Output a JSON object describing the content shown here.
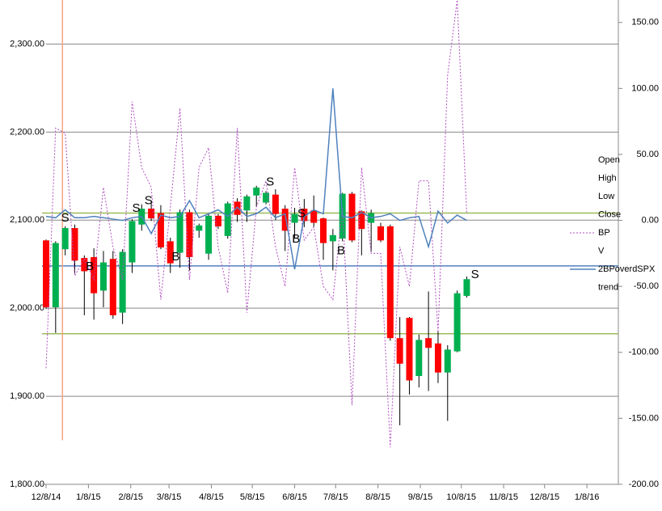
{
  "chart_data": {
    "type": "candlestick",
    "x": [
      0,
      7,
      14,
      21,
      28,
      35,
      42,
      49,
      56,
      63,
      70,
      77,
      84,
      91,
      98,
      105,
      112,
      119,
      126,
      133,
      140,
      147,
      154,
      161,
      168,
      175,
      182,
      189,
      196,
      203,
      210,
      217,
      224,
      231,
      238,
      245,
      252,
      259,
      266,
      273,
      280,
      287,
      294,
      301,
      308
    ],
    "xlim": [
      0,
      419
    ],
    "xticks": [
      {
        "value": 0,
        "label": "12/8/14"
      },
      {
        "value": 31,
        "label": "1/8/15"
      },
      {
        "value": 62,
        "label": "2/8/15"
      },
      {
        "value": 90,
        "label": "3/8/15"
      },
      {
        "value": 121,
        "label": "4/8/15"
      },
      {
        "value": 151,
        "label": "5/8/15"
      },
      {
        "value": 182,
        "label": "6/8/15"
      },
      {
        "value": 212,
        "label": "7/8/15"
      },
      {
        "value": 243,
        "label": "8/8/15"
      },
      {
        "value": 274,
        "label": "9/8/15"
      },
      {
        "value": 304,
        "label": "10/8/15"
      },
      {
        "value": 335,
        "label": "11/8/15"
      },
      {
        "value": 365,
        "label": "12/8/15"
      },
      {
        "value": 396,
        "label": "1/8/16"
      }
    ],
    "ylim": [
      1800,
      2350
    ],
    "yticks": [
      {
        "value": 1800,
        "label": "1,800.00"
      },
      {
        "value": 1900,
        "label": "1,900.00"
      },
      {
        "value": 2000,
        "label": "2,000.00"
      },
      {
        "value": 2100,
        "label": "2,100.00"
      },
      {
        "value": 2200,
        "label": "2,200.00"
      },
      {
        "value": 2300,
        "label": "2,300.00"
      }
    ],
    "y2lim": [
      -200,
      167
    ],
    "y2ticks": [
      {
        "value": -200,
        "label": "-200.00"
      },
      {
        "value": -150,
        "label": "-150.00"
      },
      {
        "value": -100,
        "label": "-100.00"
      },
      {
        "value": -50,
        "label": "-50.00"
      },
      {
        "value": 0,
        "label": "0.00"
      },
      {
        "value": 50,
        "label": "50.00"
      },
      {
        "value": 100,
        "label": "100.00"
      },
      {
        "value": 150,
        "label": "150.00"
      }
    ],
    "grid": true,
    "up_color": "#00b050",
    "down_color": "#ff0000",
    "series": [
      {
        "name": "Open",
        "values": [
          2077,
          2001,
          2067,
          2091,
          2057,
          2058,
          2020,
          2056,
          1995,
          2052,
          2095,
          2113,
          2108,
          2076,
          2063,
          2109,
          2088,
          2062,
          2105,
          2082,
          2121,
          2111,
          2128,
          2120,
          2129,
          2113,
          2097,
          2113,
          2111,
          2102,
          2076,
          2079,
          2130,
          2110,
          2097,
          2093,
          2093,
          1966,
          1989,
          1923,
          1966,
          1960,
          1927,
          1951,
          2014
        ]
      },
      {
        "name": "High",
        "values": [
          2078,
          2076,
          2093,
          2095,
          2060,
          2068,
          2065,
          2065,
          2067,
          2101,
          2118,
          2120,
          2117,
          2080,
          2112,
          2112,
          2096,
          2107,
          2107,
          2121,
          2125,
          2129,
          2139,
          2133,
          2135,
          2117,
          2114,
          2124,
          2128,
          2103,
          2090,
          2131,
          2132,
          2111,
          2112,
          2097,
          2095,
          1990,
          1990,
          1970,
          2019,
          1975,
          1958,
          2020,
          2036
        ]
      },
      {
        "name": "Low",
        "values": [
          1999,
          1972,
          2060,
          2040,
          1992,
          1987,
          2001,
          1988,
          1982,
          2040,
          2088,
          2099,
          2067,
          2040,
          2046,
          2043,
          2080,
          2055,
          2090,
          2079,
          2098,
          2098,
          2115,
          2118,
          2100,
          2065,
          2080,
          2092,
          2092,
          2055,
          2043,
          2076,
          2075,
          2060,
          2064,
          2075,
          1963,
          1867,
          1902,
          1910,
          1906,
          1915,
          1872,
          1950,
          2012
        ]
      },
      {
        "name": "Close",
        "values": [
          2001,
          2074,
          2091,
          2054,
          2042,
          2017,
          2052,
          1992,
          2064,
          2099,
          2113,
          2102,
          2069,
          2051,
          2109,
          2058,
          2094,
          2105,
          2093,
          2119,
          2106,
          2127,
          2137,
          2131,
          2107,
          2088,
          2107,
          2099,
          2097,
          2074,
          2083,
          2130,
          2077,
          2090,
          2108,
          2077,
          1966,
          1937,
          1918,
          1964,
          1955,
          1927,
          1953,
          2017,
          2033
        ]
      },
      {
        "name": "BP",
        "color": "#b04fc0",
        "dashed": true,
        "axis": "y2",
        "values": [
          -112,
          70,
          66,
          -42,
          -29,
          -45,
          25,
          -20,
          -45,
          90,
          40,
          25,
          -60,
          10,
          85,
          -45,
          40,
          55,
          -20,
          -55,
          70,
          -70,
          10,
          30,
          -20,
          -50,
          40,
          -15,
          -5,
          -50,
          -60,
          10,
          -140,
          40,
          -25,
          -25,
          -172,
          -20,
          -50,
          30,
          30,
          -85,
          110,
          167,
          5
        ]
      },
      {
        "name": "V"
      },
      {
        "name": "2BPoverdSPX",
        "color": "#4f81bd",
        "axis": "y2",
        "values": [
          3,
          2,
          8,
          2,
          2,
          3,
          2,
          1,
          0,
          2,
          3,
          -10,
          4,
          2,
          3,
          15,
          2,
          5,
          8,
          3,
          10,
          3,
          5,
          10,
          2,
          5,
          -37,
          3,
          8,
          5,
          100,
          3,
          2,
          6,
          2,
          3,
          5,
          0,
          2,
          3,
          -20,
          7,
          -2,
          4,
          0
        ]
      },
      {
        "name": "trend"
      }
    ],
    "hlines": [
      {
        "value": 2108,
        "color": "#9bbb59"
      },
      {
        "value": 1971,
        "color": "#9bbb59"
      },
      {
        "value": 2048,
        "color": "#4f81bd"
      }
    ],
    "marker_line": {
      "x": 12,
      "from": 1850,
      "to": 2350,
      "color": "#f4a582"
    },
    "annotations": [
      {
        "text": "S",
        "x": 14,
        "y": 2102,
        "color": "#000000"
      },
      {
        "text": "B",
        "x": 32,
        "y": 2047,
        "color": "#000000"
      },
      {
        "text": "S",
        "x": 66,
        "y": 2113,
        "color": "#000000"
      },
      {
        "text": "S",
        "x": 75,
        "y": 2122,
        "color": "#000000"
      },
      {
        "text": "B",
        "x": 95,
        "y": 2058,
        "color": "#000000"
      },
      {
        "text": "S",
        "x": 164,
        "y": 2143,
        "color": "#000000"
      },
      {
        "text": "B",
        "x": 183,
        "y": 2078,
        "color": "#00b050"
      },
      {
        "text": "S",
        "x": 187,
        "y": 2107,
        "color": "#ff0000"
      },
      {
        "text": "B",
        "x": 216,
        "y": 2065,
        "color": "#00b050"
      },
      {
        "text": "S",
        "x": 314,
        "y": 2038,
        "color": "#000000"
      }
    ]
  }
}
